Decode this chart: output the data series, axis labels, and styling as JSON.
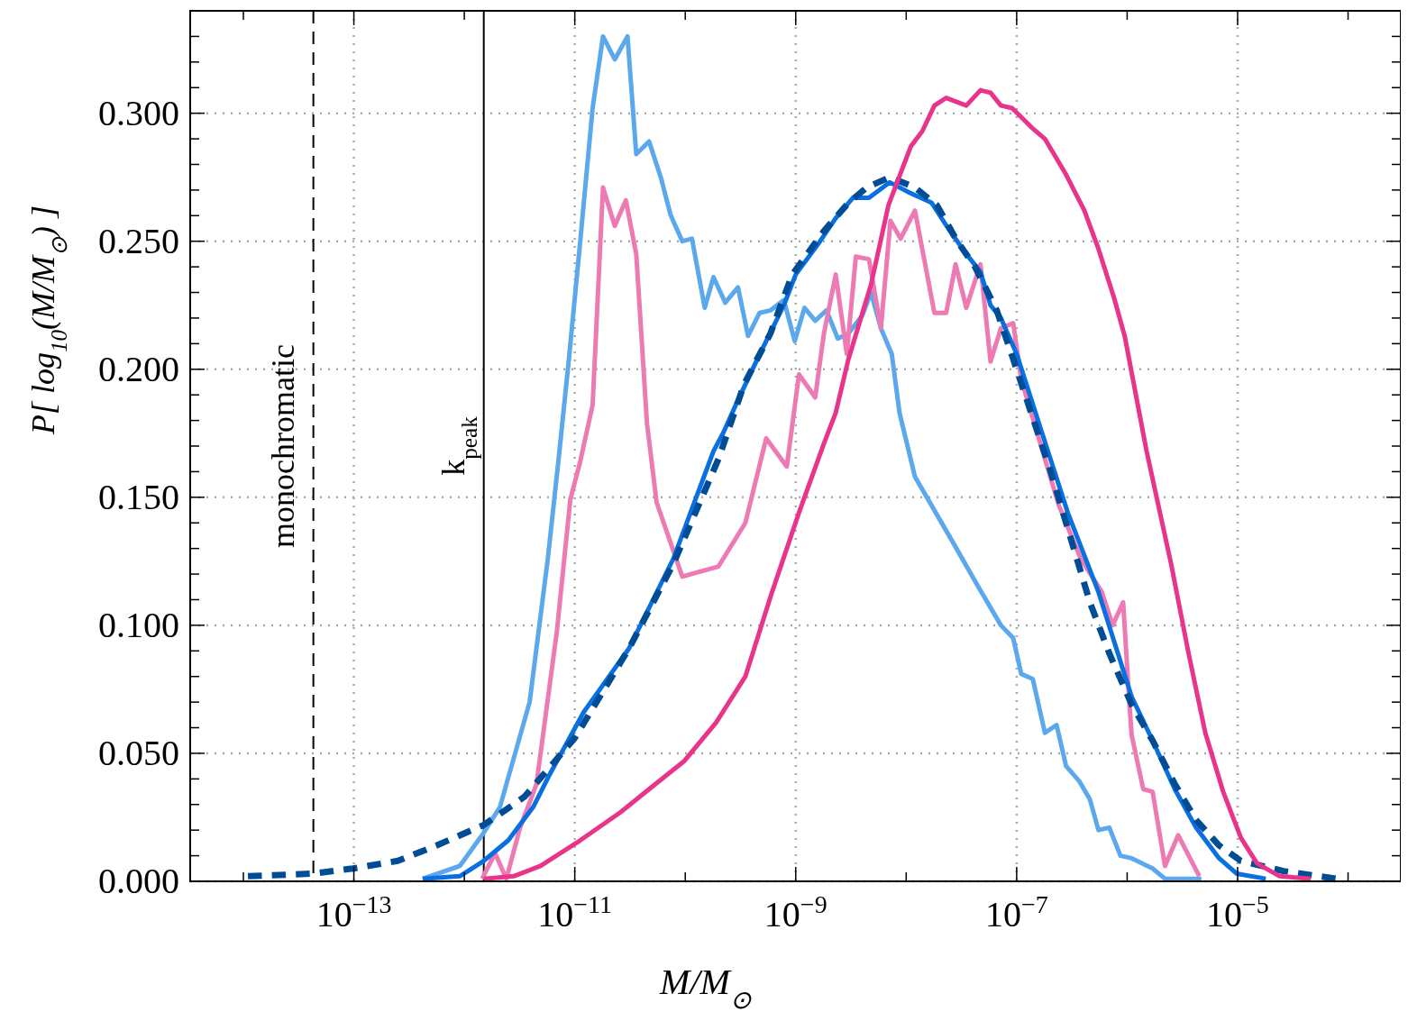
{
  "chart_data": {
    "type": "line",
    "xlabel": "M/M$_{⊙}$",
    "ylabel": "P[ log$_{10}$(M/M$_{⊙}$) ]",
    "log": "x",
    "xlim": [
      3.3e-15,
      0.0003
    ],
    "xticks": [
      {
        "value": 1e-14,
        "label": null
      },
      {
        "value": 1e-13,
        "label": "10$^{−13}$"
      },
      {
        "value": 1e-12,
        "label": null
      },
      {
        "value": 1e-11,
        "label": "10$^{−11}$"
      },
      {
        "value": 1e-10,
        "label": null
      },
      {
        "value": 1e-09,
        "label": "10$^{−9}$"
      },
      {
        "value": 1e-08,
        "label": null
      },
      {
        "value": 1e-07,
        "label": "10$^{−7}$"
      },
      {
        "value": 1e-06,
        "label": null
      },
      {
        "value": 1e-05,
        "label": "10$^{−5}$"
      },
      {
        "value": 0.0001,
        "label": null
      }
    ],
    "ylim": [
      0,
      0.34
    ],
    "yticks": [
      {
        "value": 0,
        "label": "0.000"
      },
      {
        "value": 0.01,
        "label": null
      },
      {
        "value": 0.02,
        "label": null
      },
      {
        "value": 0.03,
        "label": null
      },
      {
        "value": 0.04,
        "label": null
      },
      {
        "value": 0.05,
        "label": "0.050"
      },
      {
        "value": 0.06,
        "label": null
      },
      {
        "value": 0.07,
        "label": null
      },
      {
        "value": 0.08,
        "label": null
      },
      {
        "value": 0.09,
        "label": null
      },
      {
        "value": 0.1,
        "label": "0.100"
      },
      {
        "value": 0.11,
        "label": null
      },
      {
        "value": 0.12,
        "label": null
      },
      {
        "value": 0.13,
        "label": null
      },
      {
        "value": 0.14,
        "label": null
      },
      {
        "value": 0.15,
        "label": "0.150"
      },
      {
        "value": 0.16,
        "label": null
      },
      {
        "value": 0.17,
        "label": null
      },
      {
        "value": 0.18,
        "label": null
      },
      {
        "value": 0.19,
        "label": null
      },
      {
        "value": 0.2,
        "label": "0.200"
      },
      {
        "value": 0.21,
        "label": null
      },
      {
        "value": 0.22,
        "label": null
      },
      {
        "value": 0.23,
        "label": null
      },
      {
        "value": 0.24,
        "label": null
      },
      {
        "value": 0.25,
        "label": "0.250"
      },
      {
        "value": 0.26,
        "label": null
      },
      {
        "value": 0.27,
        "label": null
      },
      {
        "value": 0.28,
        "label": null
      },
      {
        "value": 0.29,
        "label": null
      },
      {
        "value": 0.3,
        "label": "0.300"
      },
      {
        "value": 0.31,
        "label": null
      },
      {
        "value": 0.32,
        "label": null
      },
      {
        "value": 0.33,
        "label": null
      }
    ],
    "grid": true,
    "ref_lines": [
      {
        "axis": "x",
        "value": 4.3e-14,
        "label": "monochromatic",
        "color": "#000000",
        "line_style": "dashed"
      },
      {
        "axis": "x",
        "value": 1.5e-12,
        "label": "k$_{peak}$",
        "color": "#000000",
        "line_style": "solid"
      }
    ],
    "series": [
      {
        "color": "#5ba8ec",
        "line_style": "solid",
        "x": [
          4.2e-13,
          9.1e-13,
          1.5e-12,
          2.1e-12,
          3.9e-12,
          5.7e-12,
          7.1e-12,
          8.8e-12,
          1.12e-11,
          1.45e-11,
          1.8e-11,
          2.3e-11,
          3e-11,
          3.6e-11,
          4.7e-11,
          6e-11,
          7.4e-11,
          9.4e-11,
          1.15e-10,
          1.5e-10,
          1.8e-10,
          2.3e-10,
          3e-10,
          3.7e-10,
          4.7e-10,
          5.9e-10,
          7.8e-10,
          9.8e-10,
          1.2e-09,
          1.5e-09,
          1.9e-09,
          2.4e-09,
          3e-09,
          4e-09,
          4.8e-09,
          5.9e-09,
          7.4e-09,
          8.7e-09,
          1.2e-08,
          2.6e-08,
          4.5e-08,
          7.2e-08,
          9.3e-08,
          1.1e-07,
          1.4e-07,
          1.8e-07,
          2.3e-07,
          2.8e-07,
          3.7e-07,
          4.6e-07,
          5.5e-07,
          6.9e-07,
          8.7e-07,
          1.1e-06,
          1.7e-06,
          2.2e-06,
          4.7e-06
        ],
        "values": [
          0.001,
          0.006,
          0.019,
          0.029,
          0.07,
          0.126,
          0.164,
          0.203,
          0.25,
          0.302,
          0.33,
          0.321,
          0.33,
          0.284,
          0.289,
          0.275,
          0.26,
          0.25,
          0.251,
          0.224,
          0.236,
          0.226,
          0.232,
          0.213,
          0.222,
          0.223,
          0.227,
          0.211,
          0.224,
          0.219,
          0.223,
          0.212,
          0.214,
          0.221,
          0.23,
          0.216,
          0.206,
          0.183,
          0.158,
          0.133,
          0.115,
          0.1,
          0.095,
          0.081,
          0.079,
          0.058,
          0.061,
          0.045,
          0.039,
          0.032,
          0.02,
          0.021,
          0.01,
          0.009,
          0.005,
          0.001,
          0.001
        ]
      },
      {
        "color": "#ee7ab4",
        "line_style": "solid",
        "x": [
          1.45e-12,
          1.9e-12,
          2.4e-12,
          3.2e-12,
          4.5e-12,
          6.9e-12,
          9.1e-12,
          1.12e-11,
          1.45e-11,
          1.8e-11,
          2.3e-11,
          2.9e-11,
          3.6e-11,
          4.5e-11,
          5.5e-11,
          9.4e-11,
          2e-10,
          3.5e-10,
          5.4e-10,
          8.3e-10,
          1.07e-09,
          1.5e-09,
          1.8e-09,
          2.3e-09,
          2.9e-09,
          3.5e-09,
          4.6e-09,
          5.9e-09,
          7.2e-09,
          8.9e-09,
          1.2e-08,
          1.8e-08,
          2.3e-08,
          2.8e-08,
          3.5e-08,
          4.7e-08,
          5.8e-08,
          7.2e-08,
          9.3e-08,
          1.1e-07,
          2.4e-07,
          3.8e-07,
          5.9e-07,
          7.4e-07,
          9.2e-07,
          1.05e-06,
          1.1e-06,
          1.4e-06,
          1.7e-06,
          2.2e-06,
          2.9e-06,
          4.5e-06
        ],
        "values": [
          0.001,
          0.011,
          0.001,
          0.021,
          0.038,
          0.098,
          0.149,
          0.164,
          0.186,
          0.271,
          0.256,
          0.266,
          0.245,
          0.179,
          0.148,
          0.119,
          0.123,
          0.14,
          0.173,
          0.162,
          0.198,
          0.189,
          0.214,
          0.237,
          0.206,
          0.244,
          0.243,
          0.216,
          0.258,
          0.251,
          0.262,
          0.222,
          0.222,
          0.241,
          0.224,
          0.241,
          0.203,
          0.216,
          0.218,
          0.196,
          0.147,
          0.126,
          0.113,
          0.1,
          0.109,
          0.069,
          0.057,
          0.036,
          0.035,
          0.006,
          0.018,
          0.002
        ]
      },
      {
        "color": "#0a6fe0",
        "line_style": "solid",
        "x": [
          4.2e-13,
          9.1e-13,
          1.5e-12,
          2.5e-12,
          4.2e-12,
          5.8e-12,
          1.2e-11,
          3.1e-11,
          7.8e-11,
          1.8e-10,
          2.2e-10,
          3e-10,
          4.5e-10,
          7.8e-10,
          1e-09,
          1.6e-09,
          2.3e-09,
          3.3e-09,
          4.6e-09,
          7.1e-09,
          1.07e-08,
          1.7e-08,
          2.4e-08,
          3.5e-08,
          4.7e-08,
          5.8e-08,
          7.2e-08,
          1e-07,
          1.7e-07,
          2.9e-07,
          5.5e-07,
          1.1e-06,
          1.7e-06,
          2.7e-06,
          4.2e-06,
          6.8e-06,
          9.8e-06,
          1.8e-05
        ],
        "values": [
          0.001,
          0.002,
          0.008,
          0.016,
          0.029,
          0.041,
          0.066,
          0.091,
          0.126,
          0.168,
          0.175,
          0.188,
          0.204,
          0.225,
          0.237,
          0.249,
          0.259,
          0.267,
          0.267,
          0.273,
          0.269,
          0.265,
          0.255,
          0.245,
          0.238,
          0.225,
          0.22,
          0.206,
          0.175,
          0.144,
          0.113,
          0.072,
          0.055,
          0.036,
          0.021,
          0.009,
          0.003,
          0.001
        ]
      },
      {
        "color": "#004d96",
        "line_style": "dashed",
        "x": [
          1.1e-14,
          4.2e-14,
          9.8e-14,
          2.5e-13,
          5.6e-13,
          1.5e-12,
          3.5e-12,
          1e-11,
          3.1e-11,
          7.8e-11,
          2e-10,
          3.4e-10,
          5.9e-10,
          9.3e-10,
          1.8e-09,
          3e-09,
          4.4e-09,
          7.1e-09,
          1.2e-08,
          1.9e-08,
          2.9e-08,
          4.2e-08,
          6.6e-08,
          9.3e-08,
          2e-07,
          4.6e-07,
          6.9e-07,
          1.1e-06,
          1.7e-06,
          2.7e-06,
          4.2e-06,
          6.8e-06,
          1.07e-05,
          2.6e-05,
          7.8e-05
        ],
        "values": [
          0.002,
          0.003,
          0.005,
          0.008,
          0.014,
          0.022,
          0.033,
          0.056,
          0.091,
          0.124,
          0.165,
          0.194,
          0.214,
          0.237,
          0.254,
          0.265,
          0.271,
          0.275,
          0.271,
          0.264,
          0.25,
          0.24,
          0.223,
          0.204,
          0.161,
          0.109,
          0.089,
          0.069,
          0.055,
          0.038,
          0.024,
          0.014,
          0.008,
          0.004,
          0.001
        ]
      },
      {
        "color": "#e8348a",
        "line_style": "solid",
        "x": [
          1.5e-12,
          2.8e-12,
          4.9e-12,
          1.12e-11,
          2.6e-11,
          4.7e-11,
          9.8e-11,
          1.9e-10,
          3.5e-10,
          6e-10,
          1.07e-09,
          1.8e-09,
          2.3e-09,
          3e-09,
          4.8e-09,
          6.9e-09,
          1.1e-08,
          1.4e-08,
          1.8e-08,
          2.3e-08,
          3.5e-08,
          4.7e-08,
          5.8e-08,
          7.2e-08,
          9.1e-08,
          1.4e-07,
          1.8e-07,
          2.8e-07,
          4.1e-07,
          5.5e-07,
          7.6e-07,
          9.5e-07,
          1.5e-06,
          2.5e-06,
          3.6e-06,
          5.1e-06,
          7.4e-06,
          1.07e-05,
          1.5e-05,
          2.4e-05,
          4.6e-05
        ],
        "values": [
          0.001,
          0.002,
          0.006,
          0.016,
          0.027,
          0.036,
          0.047,
          0.062,
          0.08,
          0.112,
          0.144,
          0.171,
          0.183,
          0.204,
          0.233,
          0.264,
          0.287,
          0.293,
          0.303,
          0.306,
          0.303,
          0.309,
          0.308,
          0.303,
          0.302,
          0.294,
          0.29,
          0.276,
          0.262,
          0.247,
          0.228,
          0.213,
          0.168,
          0.124,
          0.089,
          0.058,
          0.035,
          0.017,
          0.007,
          0.002,
          0.001
        ]
      }
    ]
  }
}
